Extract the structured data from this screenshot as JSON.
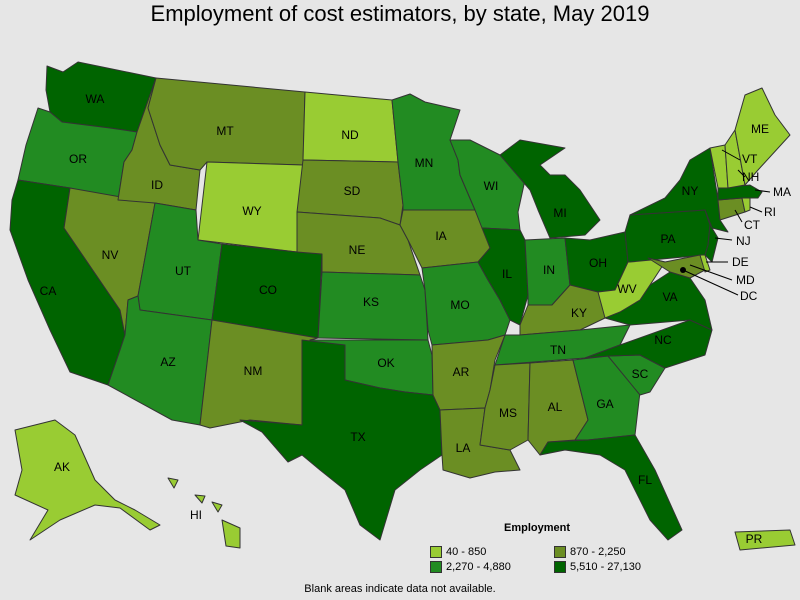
{
  "title": "Employment of cost estimators, by state, May 2019",
  "legend": {
    "title": "Employment",
    "items": [
      {
        "label": "40 - 850",
        "color": "#99cc33"
      },
      {
        "label": "870 - 2,250",
        "color": "#6b8e23"
      },
      {
        "label": "2,270 - 4,880",
        "color": "#228b22"
      },
      {
        "label": "5,510 - 27,130",
        "color": "#006400"
      }
    ]
  },
  "footnote": "Blank areas indicate data not available.",
  "states": [
    {
      "abbr": "WA",
      "tier": 3
    },
    {
      "abbr": "OR",
      "tier": 2
    },
    {
      "abbr": "CA",
      "tier": 3
    },
    {
      "abbr": "NV",
      "tier": 1
    },
    {
      "abbr": "ID",
      "tier": 1
    },
    {
      "abbr": "MT",
      "tier": 1
    },
    {
      "abbr": "WY",
      "tier": 0
    },
    {
      "abbr": "UT",
      "tier": 2
    },
    {
      "abbr": "AZ",
      "tier": 2
    },
    {
      "abbr": "CO",
      "tier": 3
    },
    {
      "abbr": "NM",
      "tier": 1
    },
    {
      "abbr": "ND",
      "tier": 0
    },
    {
      "abbr": "SD",
      "tier": 1
    },
    {
      "abbr": "NE",
      "tier": 1
    },
    {
      "abbr": "KS",
      "tier": 2
    },
    {
      "abbr": "OK",
      "tier": 2
    },
    {
      "abbr": "TX",
      "tier": 3
    },
    {
      "abbr": "MN",
      "tier": 2
    },
    {
      "abbr": "IA",
      "tier": 1
    },
    {
      "abbr": "MO",
      "tier": 2
    },
    {
      "abbr": "AR",
      "tier": 1
    },
    {
      "abbr": "LA",
      "tier": 1
    },
    {
      "abbr": "WI",
      "tier": 2
    },
    {
      "abbr": "IL",
      "tier": 3
    },
    {
      "abbr": "MI",
      "tier": 3
    },
    {
      "abbr": "IN",
      "tier": 2
    },
    {
      "abbr": "OH",
      "tier": 3
    },
    {
      "abbr": "KY",
      "tier": 1
    },
    {
      "abbr": "TN",
      "tier": 2
    },
    {
      "abbr": "MS",
      "tier": 1
    },
    {
      "abbr": "AL",
      "tier": 1
    },
    {
      "abbr": "GA",
      "tier": 2
    },
    {
      "abbr": "FL",
      "tier": 3
    },
    {
      "abbr": "SC",
      "tier": 2
    },
    {
      "abbr": "NC",
      "tier": 3
    },
    {
      "abbr": "VA",
      "tier": 3
    },
    {
      "abbr": "WV",
      "tier": 0
    },
    {
      "abbr": "PA",
      "tier": 3
    },
    {
      "abbr": "NY",
      "tier": 3
    },
    {
      "abbr": "ME",
      "tier": 0
    },
    {
      "abbr": "VT",
      "tier": 0
    },
    {
      "abbr": "NH",
      "tier": 0
    },
    {
      "abbr": "MA",
      "tier": 3
    },
    {
      "abbr": "RI",
      "tier": 0
    },
    {
      "abbr": "CT",
      "tier": 1
    },
    {
      "abbr": "NJ",
      "tier": 3
    },
    {
      "abbr": "DE",
      "tier": 0
    },
    {
      "abbr": "MD",
      "tier": 1
    },
    {
      "abbr": "DC",
      "tier": 3
    },
    {
      "abbr": "AK",
      "tier": 0
    },
    {
      "abbr": "HI",
      "tier": 0
    },
    {
      "abbr": "PR",
      "tier": 0
    }
  ]
}
